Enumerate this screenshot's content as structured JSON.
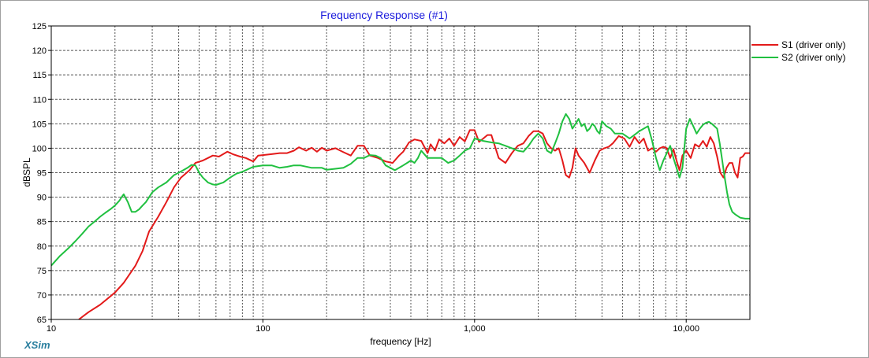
{
  "app": {
    "brand": "XSim"
  },
  "chart_data": {
    "type": "line",
    "title": "Frequency Response (#1)",
    "xlabel": "frequency [Hz]",
    "ylabel": "dBSPL",
    "xscale": "log",
    "xlim": [
      10,
      20000
    ],
    "ylim": [
      65,
      125
    ],
    "grid": true,
    "legend_position": "top-right",
    "x_tick_labels": [
      {
        "value": 10,
        "label": "10"
      },
      {
        "value": 100,
        "label": "100"
      },
      {
        "value": 1000,
        "label": "1,000"
      },
      {
        "value": 10000,
        "label": "10,000"
      }
    ],
    "y_ticks": [
      65,
      70,
      75,
      80,
      85,
      90,
      95,
      100,
      105,
      110,
      115,
      120,
      125
    ],
    "series": [
      {
        "name": "S1 (driver only)",
        "color": "#e31a1a",
        "x": [
          13.5,
          15,
          17,
          20,
          22,
          25,
          27,
          29,
          32,
          35,
          38,
          41,
          45,
          48,
          52,
          55,
          58,
          62,
          68,
          72,
          78,
          83,
          90,
          95,
          100,
          110,
          120,
          130,
          140,
          148,
          160,
          170,
          180,
          190,
          200,
          220,
          240,
          260,
          280,
          300,
          320,
          350,
          380,
          410,
          440,
          460,
          490,
          520,
          560,
          600,
          620,
          650,
          680,
          720,
          760,
          800,
          850,
          900,
          950,
          1000,
          1050,
          1100,
          1150,
          1200,
          1300,
          1400,
          1500,
          1600,
          1700,
          1800,
          1900,
          2000,
          2100,
          2200,
          2300,
          2400,
          2500,
          2600,
          2700,
          2800,
          2900,
          3000,
          3100,
          3300,
          3500,
          3700,
          3900,
          4100,
          4300,
          4500,
          4800,
          5100,
          5400,
          5700,
          6000,
          6300,
          6600,
          6900,
          7200,
          7500,
          7800,
          8100,
          8400,
          8700,
          9000,
          9300,
          9600,
          10000,
          10500,
          11000,
          11500,
          12000,
          12500,
          13000,
          13500,
          14000,
          14500,
          15000,
          15500,
          16000,
          16500,
          17000,
          17500,
          18000,
          18500,
          19000,
          20000
        ],
        "y": [
          65,
          66.5,
          68,
          70.5,
          72.5,
          76,
          79,
          83,
          86,
          89,
          92,
          94,
          95.5,
          97,
          97.5,
          98,
          98.5,
          98.3,
          99.3,
          98.8,
          98.3,
          98.0,
          97.3,
          98.5,
          98.6,
          98.8,
          99.0,
          99.0,
          99.5,
          100.2,
          99.5,
          100.1,
          99.3,
          100.1,
          99.5,
          100.0,
          99.2,
          98.5,
          100.5,
          100.5,
          98.5,
          98.0,
          97.3,
          97.0,
          98.5,
          99.3,
          101.2,
          101.8,
          101.5,
          99.0,
          100.8,
          99.5,
          101.8,
          101.0,
          102.0,
          100.5,
          102.3,
          101.4,
          103.7,
          103.7,
          101.3,
          102.0,
          102.7,
          102.7,
          98.0,
          97.0,
          99.0,
          100.5,
          101.0,
          102.5,
          103.5,
          103.5,
          103.0,
          101.0,
          100.0,
          99.5,
          100.0,
          97.5,
          94.5,
          94.0,
          96.0,
          100.0,
          98.5,
          97.0,
          95.0,
          97.5,
          99.5,
          100.0,
          100.3,
          101.0,
          102.5,
          102.0,
          100.3,
          102.3,
          101.0,
          102.0,
          99.5,
          100.0,
          99.3,
          100.0,
          100.3,
          100.0,
          98.0,
          99.8,
          97.5,
          95.5,
          98.5,
          99.5,
          98.0,
          100.8,
          100.3,
          101.5,
          100.3,
          102.3,
          101.0,
          98.3,
          95.0,
          94.0,
          96.0,
          97.0,
          97.0,
          95.0,
          94.0,
          98.0,
          98.3,
          99.0,
          99.0
        ]
      },
      {
        "name": "S2 (driver only)",
        "color": "#20c040",
        "x": [
          10,
          11,
          12,
          13,
          14,
          15,
          16,
          17,
          18,
          19,
          20,
          21,
          21.5,
          22,
          23,
          24,
          25,
          26,
          27,
          28,
          29,
          30,
          32,
          35,
          38,
          40,
          42,
          44,
          46,
          48,
          50,
          52,
          55,
          58,
          60,
          65,
          70,
          75,
          80,
          90,
          100,
          110,
          120,
          130,
          140,
          150,
          170,
          190,
          200,
          220,
          240,
          260,
          280,
          300,
          320,
          340,
          360,
          380,
          400,
          420,
          440,
          460,
          480,
          500,
          520,
          540,
          560,
          600,
          650,
          700,
          750,
          800,
          850,
          900,
          950,
          1000,
          1100,
          1200,
          1300,
          1400,
          1500,
          1600,
          1700,
          1800,
          1900,
          2000,
          2100,
          2200,
          2300,
          2400,
          2500,
          2600,
          2700,
          2800,
          2900,
          3000,
          3100,
          3200,
          3300,
          3400,
          3500,
          3600,
          3700,
          3800,
          3900,
          4000,
          4200,
          4400,
          4600,
          4800,
          5000,
          5200,
          5400,
          5600,
          5800,
          6000,
          6300,
          6600,
          6900,
          7200,
          7500,
          7800,
          8100,
          8400,
          8700,
          9000,
          9300,
          9600,
          10000,
          10400,
          10800,
          11200,
          11600,
          12000,
          12400,
          12800,
          13200,
          13600,
          14000,
          14400,
          14800,
          15200,
          15600,
          16000,
          16500,
          17000,
          18000,
          19000,
          20000
        ],
        "y": [
          76,
          78,
          79.5,
          81,
          82.5,
          84,
          85,
          86,
          86.8,
          87.5,
          88.3,
          89.3,
          90.0,
          90.6,
          89.0,
          87.0,
          87.0,
          87.5,
          88.3,
          89.0,
          90.0,
          91.0,
          92.0,
          93.0,
          94.5,
          95.0,
          95.5,
          96.0,
          96.6,
          96.5,
          95.0,
          94.0,
          93.0,
          92.6,
          92.5,
          93.0,
          94.0,
          94.8,
          95.2,
          96.2,
          96.5,
          96.5,
          96.0,
          96.2,
          96.5,
          96.5,
          96.0,
          96.0,
          95.6,
          95.8,
          96.0,
          96.8,
          98.0,
          98.0,
          98.6,
          98.5,
          98.0,
          96.5,
          96.0,
          95.5,
          96.0,
          96.5,
          97.0,
          97.5,
          97.0,
          98.0,
          99.5,
          98.0,
          98.0,
          98.0,
          97.0,
          97.5,
          98.5,
          99.5,
          100.0,
          102.0,
          101.5,
          101.2,
          101.0,
          100.5,
          100.0,
          99.5,
          99.3,
          100.5,
          102.0,
          103.0,
          102.0,
          99.5,
          99.0,
          101.0,
          103.0,
          105.5,
          107.0,
          106.0,
          104.0,
          105.0,
          106.0,
          104.5,
          105.0,
          103.5,
          104.0,
          105.0,
          104.5,
          103.5,
          103.0,
          105.5,
          104.5,
          104.0,
          103.0,
          103.0,
          103.0,
          102.5,
          102.0,
          102.5,
          103.0,
          103.5,
          104.0,
          104.5,
          101.5,
          98.0,
          95.5,
          97.5,
          99.0,
          100.5,
          98.0,
          96.0,
          94.0,
          96.0,
          104.0,
          106.0,
          104.5,
          103.0,
          104.0,
          104.8,
          105.2,
          105.4,
          105.0,
          104.5,
          104.0,
          101.0,
          97.5,
          94.0,
          91.0,
          88.5,
          87.0,
          86.5,
          85.8,
          85.6,
          85.6
        ]
      }
    ]
  }
}
